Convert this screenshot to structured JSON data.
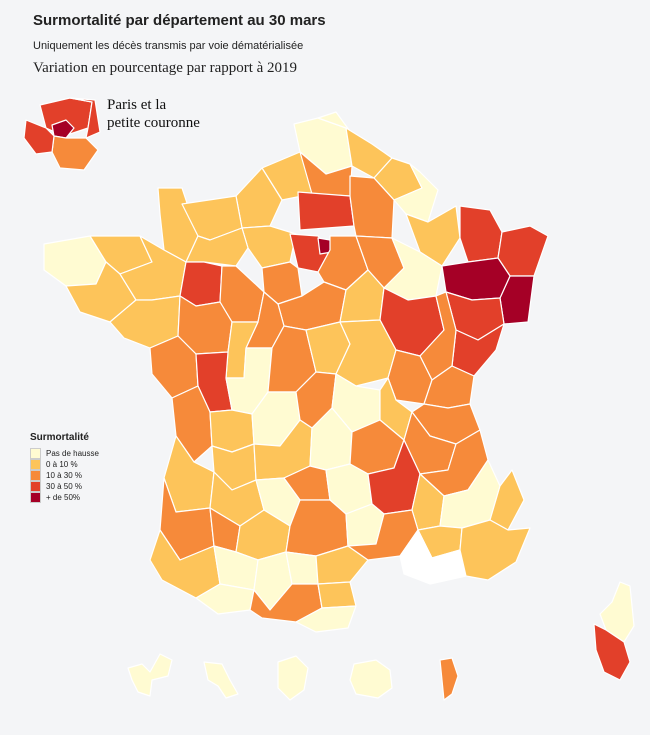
{
  "title": "Surmortalité par département au 30 mars",
  "subtitle": "Uniquement les décès transmis par voie dématérialisée",
  "variation_label": "Variation en pourcentage par rapport à 2019",
  "inset_label_line1": "Paris et la",
  "inset_label_line2": "petite couronne",
  "legend": {
    "title": "Surmortalité",
    "items": [
      {
        "label": "Pas de hausse",
        "color": "#fffbd2"
      },
      {
        "label": "0 à 10 %",
        "color": "#fdc45a"
      },
      {
        "label": "10 à 30 %",
        "color": "#f68a3a"
      },
      {
        "label": "30 à 50 %",
        "color": "#e2402a"
      },
      {
        "label": "+ de 50%",
        "color": "#a50026"
      }
    ]
  },
  "colors": {
    "none": "#fffbd2",
    "low": "#fdc45a",
    "mid": "#f68a3a",
    "high": "#e2402a",
    "max": "#a50026",
    "nodata": "#ffffff",
    "background": "#f4f5f7"
  }
}
